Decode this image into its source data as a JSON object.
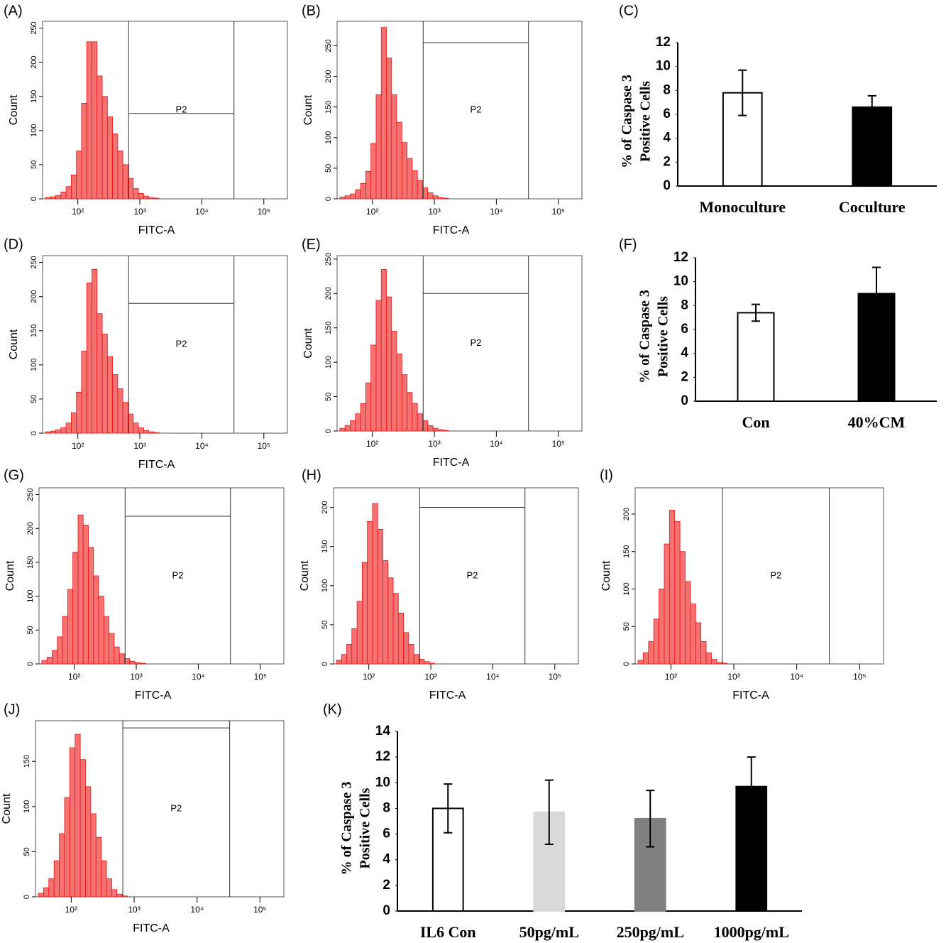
{
  "chart_data": [
    {
      "type": "histogram",
      "panel": "(A)",
      "xlabel": "FITC-A",
      "ylabel": "Count",
      "xscale": "log",
      "color": "#f47272",
      "xlim": [
        27,
        240000
      ],
      "xticks": [
        {
          "value": 100,
          "label": "10²"
        },
        {
          "value": 1000,
          "label": "10³"
        },
        {
          "value": 10000,
          "label": "10⁴"
        },
        {
          "value": 100000,
          "label": "10⁵"
        }
      ],
      "ylim": [
        0,
        260
      ],
      "yticks": [
        0,
        50,
        100,
        150,
        200,
        250
      ],
      "bins": [
        30,
        36.3,
        44.0,
        53.3,
        64.6,
        78.3,
        94.8,
        114.9,
        139.2,
        168.6,
        204.3,
        247.5,
        299.8,
        363.3,
        440.1,
        533.2,
        646.0,
        782.6,
        948.1,
        1148.6,
        1391.5,
        1686.0,
        2042.6,
        2474.6,
        2998
      ],
      "values": [
        2,
        3,
        5,
        10,
        18,
        35,
        70,
        140,
        230,
        230,
        180,
        150,
        120,
        95,
        70,
        50,
        30,
        15,
        8,
        4,
        2,
        1,
        0,
        0
      ],
      "gate": {
        "label": "P2",
        "x": [
          660,
          33000
        ],
        "y": 125
      }
    },
    {
      "type": "histogram",
      "panel": "(B)",
      "xlabel": "FITC-A",
      "ylabel": "Count",
      "xscale": "log",
      "color": "#f47272",
      "xlim": [
        27,
        240000
      ],
      "xticks": [
        {
          "value": 100,
          "label": "10²"
        },
        {
          "value": 1000,
          "label": "10³"
        },
        {
          "value": 10000,
          "label": "10⁴"
        },
        {
          "value": 100000,
          "label": "10⁵"
        }
      ],
      "ylim": [
        0,
        290
      ],
      "yticks": [
        0,
        50,
        100,
        150,
        200,
        250
      ],
      "bins": [
        30,
        36.3,
        44.0,
        53.3,
        64.6,
        78.3,
        94.8,
        114.9,
        139.2,
        168.6,
        204.3,
        247.5,
        299.8,
        363.3,
        440.1,
        533.2,
        646.0,
        782.6,
        948.1,
        1148.6,
        1391.5,
        1686.0,
        2042.6,
        2474.6,
        2998
      ],
      "values": [
        3,
        5,
        8,
        15,
        25,
        45,
        90,
        170,
        280,
        230,
        170,
        125,
        92,
        66,
        46,
        30,
        18,
        10,
        5,
        2,
        1,
        0,
        0,
        0
      ],
      "gate": {
        "label": "P2",
        "x": [
          660,
          33000
        ],
        "y": 255
      }
    },
    {
      "type": "bar",
      "panel": "(C)",
      "ylabel": [
        "% of Caspase 3",
        "Positive Cells"
      ],
      "categories": [
        "Monoculture",
        "Coculture"
      ],
      "values": [
        7.8,
        6.6
      ],
      "errors": [
        1.9,
        0.95
      ],
      "colors": [
        "#ffffff",
        "#000000"
      ],
      "ylim": [
        0,
        12
      ],
      "yticks": [
        0,
        2,
        4,
        6,
        8,
        10,
        12
      ]
    },
    {
      "type": "histogram",
      "panel": "(D)",
      "xlabel": "FITC-A",
      "ylabel": "Count",
      "xscale": "log",
      "color": "#f47272",
      "xlim": [
        27,
        240000
      ],
      "xticks": [
        {
          "value": 100,
          "label": "10²"
        },
        {
          "value": 1000,
          "label": "10³"
        },
        {
          "value": 10000,
          "label": "10⁴"
        },
        {
          "value": 100000,
          "label": "10⁵"
        }
      ],
      "ylim": [
        0,
        260
      ],
      "yticks": [
        0,
        50,
        100,
        150,
        200,
        250
      ],
      "bins": [
        30,
        36.3,
        44.0,
        53.3,
        64.6,
        78.3,
        94.8,
        114.9,
        139.2,
        168.6,
        204.3,
        247.5,
        299.8,
        363.3,
        440.1,
        533.2,
        646.0,
        782.6,
        948.1,
        1148.6,
        1391.5,
        1686.0,
        2042.6,
        2474.6,
        2998
      ],
      "values": [
        2,
        3,
        5,
        8,
        15,
        30,
        60,
        120,
        220,
        240,
        175,
        145,
        112,
        86,
        65,
        45,
        28,
        15,
        8,
        4,
        2,
        1,
        0,
        0
      ],
      "gate": {
        "label": "P2",
        "x": [
          660,
          33000
        ],
        "y": 190
      }
    },
    {
      "type": "histogram",
      "panel": "(E)",
      "xlabel": "FITC-A",
      "ylabel": "Count",
      "xscale": "log",
      "color": "#f47272",
      "xlim": [
        27,
        240000
      ],
      "xticks": [
        {
          "value": 100,
          "label": "10²"
        },
        {
          "value": 1000,
          "label": "10³"
        },
        {
          "value": 10000,
          "label": "10⁴"
        },
        {
          "value": 100000,
          "label": "10⁵"
        }
      ],
      "ylim": [
        0,
        255
      ],
      "yticks": [
        0,
        50,
        100,
        150,
        200,
        250
      ],
      "bins": [
        30,
        36.3,
        44.0,
        53.3,
        64.6,
        78.3,
        94.8,
        114.9,
        139.2,
        168.6,
        204.3,
        247.5,
        299.8,
        363.3,
        440.1,
        533.2,
        646.0,
        782.6,
        948.1,
        1148.6,
        1391.5,
        1686.0,
        2042.6,
        2474.6,
        2998
      ],
      "values": [
        4,
        8,
        15,
        25,
        40,
        70,
        125,
        190,
        235,
        195,
        145,
        112,
        82,
        56,
        40,
        25,
        15,
        8,
        4,
        2,
        1,
        0,
        0,
        0
      ],
      "gate": {
        "label": "P2",
        "x": [
          660,
          33000
        ],
        "y": 200
      }
    },
    {
      "type": "bar",
      "panel": "(F)",
      "ylabel": [
        "% of Caspase 3",
        "Positive Cells"
      ],
      "categories": [
        "Con",
        "40%CM"
      ],
      "values": [
        7.4,
        9.0
      ],
      "errors": [
        0.7,
        2.2
      ],
      "colors": [
        "#ffffff",
        "#000000"
      ],
      "ylim": [
        0,
        12
      ],
      "yticks": [
        0,
        2,
        4,
        6,
        8,
        10,
        12
      ]
    },
    {
      "type": "histogram",
      "panel": "(G)",
      "xlabel": "FITC-A",
      "ylabel": "Count",
      "xscale": "log",
      "color": "#f47272",
      "xlim": [
        27,
        240000
      ],
      "xticks": [
        {
          "value": 100,
          "label": "10²"
        },
        {
          "value": 1000,
          "label": "10³"
        },
        {
          "value": 10000,
          "label": "10⁴"
        },
        {
          "value": 100000,
          "label": "10⁵"
        }
      ],
      "ylim": [
        0,
        260
      ],
      "yticks": [
        0,
        50,
        100,
        150,
        200,
        250
      ],
      "bins": [
        30,
        36.3,
        44.0,
        53.3,
        64.6,
        78.3,
        94.8,
        114.9,
        139.2,
        168.6,
        204.3,
        247.5,
        299.8,
        363.3,
        440.1,
        533.2,
        646.0,
        782.6,
        948.1,
        1148.6,
        1391.5,
        1686.0,
        2042.6,
        2474.6,
        2998
      ],
      "values": [
        5,
        10,
        20,
        40,
        70,
        110,
        165,
        220,
        205,
        172,
        130,
        100,
        70,
        45,
        25,
        15,
        8,
        4,
        2,
        1,
        0,
        0,
        0,
        0
      ],
      "gate": {
        "label": "P2",
        "x": [
          660,
          33000
        ],
        "y": 218
      }
    },
    {
      "type": "histogram",
      "panel": "(H)",
      "xlabel": "FITC-A",
      "ylabel": "Count",
      "xscale": "log",
      "color": "#f47272",
      "xlim": [
        27,
        240000
      ],
      "xticks": [
        {
          "value": 100,
          "label": "10²"
        },
        {
          "value": 1000,
          "label": "10³"
        },
        {
          "value": 10000,
          "label": "10⁴"
        },
        {
          "value": 100000,
          "label": "10⁵"
        }
      ],
      "ylim": [
        0,
        225
      ],
      "yticks": [
        0,
        50,
        100,
        150,
        200
      ],
      "bins": [
        30,
        36.3,
        44.0,
        53.3,
        64.6,
        78.3,
        94.8,
        114.9,
        139.2,
        168.6,
        204.3,
        247.5,
        299.8,
        363.3,
        440.1,
        533.2,
        646.0,
        782.6,
        948.1,
        1148.6,
        1391.5,
        1686.0,
        2042.6,
        2474.6,
        2998
      ],
      "values": [
        5,
        12,
        25,
        45,
        80,
        130,
        182,
        205,
        172,
        132,
        110,
        90,
        65,
        40,
        25,
        12,
        6,
        3,
        1,
        0,
        0,
        0,
        0,
        0
      ],
      "gate": {
        "label": "P2",
        "x": [
          660,
          33000
        ],
        "y": 200
      }
    },
    {
      "type": "histogram",
      "panel": "(I)",
      "xlabel": "FITC-A",
      "ylabel": "Count",
      "xscale": "log",
      "color": "#f47272",
      "xlim": [
        27,
        240000
      ],
      "xticks": [
        {
          "value": 100,
          "label": "10²"
        },
        {
          "value": 1000,
          "label": "10³"
        },
        {
          "value": 10000,
          "label": "10⁴"
        },
        {
          "value": 100000,
          "label": "10⁵"
        }
      ],
      "ylim": [
        0,
        235
      ],
      "yticks": [
        0,
        50,
        100,
        150,
        200
      ],
      "bins": [
        30,
        36.3,
        44.0,
        53.3,
        64.6,
        78.3,
        94.8,
        114.9,
        139.2,
        168.6,
        204.3,
        247.5,
        299.8,
        363.3,
        440.1,
        533.2,
        646.0,
        782.6,
        948.1,
        1148.6,
        1391.5,
        1686.0,
        2042.6,
        2474.6,
        2998
      ],
      "values": [
        5,
        15,
        30,
        60,
        100,
        160,
        205,
        190,
        150,
        110,
        80,
        55,
        30,
        15,
        6,
        2,
        1,
        0,
        0,
        0,
        0,
        0,
        0,
        0
      ],
      "gate": {
        "label": "P2",
        "x": [
          660,
          33000
        ]
      }
    },
    {
      "type": "histogram",
      "panel": "(J)",
      "xlabel": "FITC-A",
      "ylabel": "Count",
      "xscale": "log",
      "color": "#f47272",
      "xlim": [
        27,
        240000
      ],
      "xticks": [
        {
          "value": 100,
          "label": "10²"
        },
        {
          "value": 1000,
          "label": "10³"
        },
        {
          "value": 10000,
          "label": "10⁴"
        },
        {
          "value": 100000,
          "label": "10⁵"
        }
      ],
      "ylim": [
        0,
        195
      ],
      "yticks": [
        0,
        50,
        100,
        150
      ],
      "bins": [
        30,
        36.3,
        44.0,
        53.3,
        64.6,
        78.3,
        94.8,
        114.9,
        139.2,
        168.6,
        204.3,
        247.5,
        299.8,
        363.3,
        440.1,
        533.2,
        646.0,
        782.6,
        948.1,
        1148.6,
        1391.5,
        1686.0,
        2042.6,
        2474.6,
        2998
      ],
      "values": [
        4,
        10,
        20,
        40,
        70,
        110,
        165,
        180,
        152,
        122,
        92,
        66,
        40,
        20,
        8,
        3,
        1,
        0,
        0,
        0,
        0,
        0,
        0,
        0
      ],
      "gate": {
        "label": "P2",
        "x": [
          660,
          33000
        ],
        "y": 187
      }
    },
    {
      "type": "bar",
      "panel": "(K)",
      "ylabel": [
        "% of Caspase 3",
        "Positive Cells"
      ],
      "categories": [
        "IL6 Con",
        "50pg/mL",
        "250pg/mL",
        "1000pg/mL"
      ],
      "values": [
        8.0,
        7.7,
        7.2,
        9.7
      ],
      "errors": [
        1.9,
        2.5,
        2.2,
        2.3
      ],
      "colors": [
        "#ffffff",
        "#d9d9d9",
        "#808080",
        "#000000"
      ],
      "ylim": [
        0,
        14
      ],
      "yticks": [
        0,
        2,
        4,
        6,
        8,
        10,
        12,
        14
      ]
    }
  ]
}
